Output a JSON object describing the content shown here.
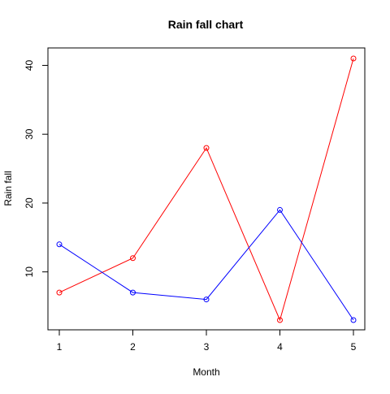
{
  "chart_data": {
    "type": "line",
    "title": "Rain fall chart",
    "xlabel": "Month",
    "ylabel": "Rain fall",
    "x": [
      1,
      2,
      3,
      4,
      5
    ],
    "x_ticks": [
      "1",
      "2",
      "3",
      "4",
      "5"
    ],
    "y_ticks": [
      "10",
      "20",
      "30",
      "40"
    ],
    "xlim": [
      1,
      5
    ],
    "ylim": [
      3,
      41
    ],
    "grid": false,
    "marker": "open-circle",
    "series": [
      {
        "values": [
          7,
          12,
          28,
          3,
          41
        ],
        "color": "#ff0000"
      },
      {
        "values": [
          14,
          7,
          6,
          19,
          3
        ],
        "color": "#0000ff"
      }
    ]
  }
}
